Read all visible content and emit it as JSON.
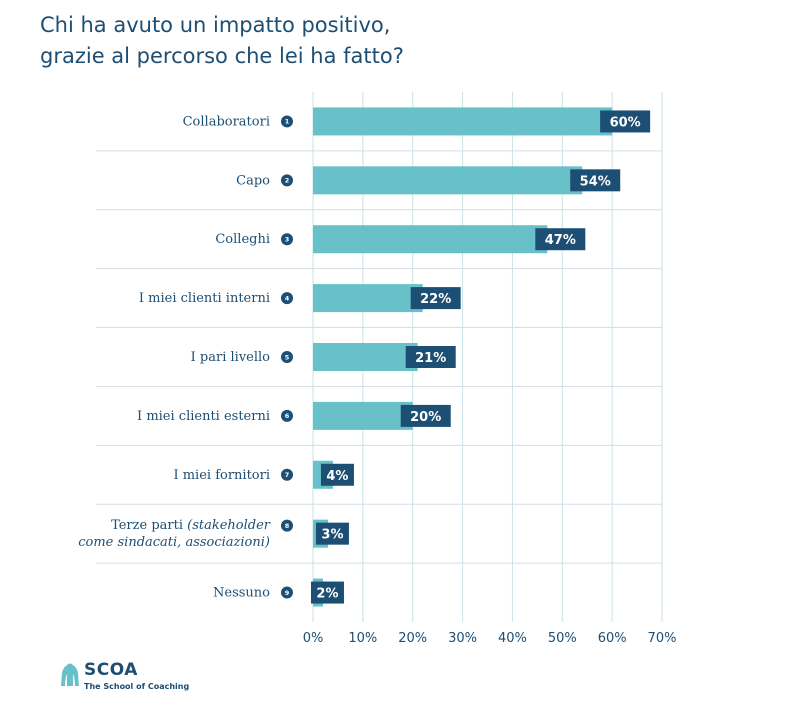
{
  "title_lines": [
    "Chi ha avuto un impatto positivo,",
    "grazie al percorso che lei ha fatto?"
  ],
  "colors": {
    "bar": "#68c1c8",
    "tag": "#1d4e73",
    "text": "#1d4e73",
    "grid": "#c7e3e6"
  },
  "chart_data": {
    "type": "bar",
    "orientation": "horizontal",
    "categories": [
      {
        "num": "1",
        "lines": [
          "Collaboratori"
        ]
      },
      {
        "num": "2",
        "lines": [
          "Capo"
        ]
      },
      {
        "num": "3",
        "lines": [
          "Colleghi"
        ]
      },
      {
        "num": "4",
        "lines": [
          "I miei clienti interni"
        ]
      },
      {
        "num": "5",
        "lines": [
          "I pari livello"
        ]
      },
      {
        "num": "6",
        "lines": [
          "I miei clienti esterni"
        ]
      },
      {
        "num": "7",
        "lines": [
          "I miei fornitori"
        ]
      },
      {
        "num": "8",
        "lines": [
          "Terze parti (stakeholder",
          "come sindacati, associazioni)"
        ],
        "italic_part": "(stakeholder come sindacati, associazioni)"
      },
      {
        "num": "9",
        "lines": [
          "Nessuno"
        ]
      }
    ],
    "values": [
      60,
      54,
      47,
      22,
      21,
      20,
      4,
      3,
      2
    ],
    "value_labels": [
      "60%",
      "54%",
      "47%",
      "22%",
      "21%",
      "20%",
      "4%",
      "3%",
      "2%"
    ],
    "xlim": [
      0,
      70
    ],
    "xticks": [
      "0%",
      "10%",
      "20%",
      "30%",
      "40%",
      "50%",
      "60%",
      "70%"
    ],
    "grid": true
  },
  "brand": {
    "name": "SCOA",
    "tagline": "The School of Coaching",
    "logo_icon": "coach-logo-icon"
  }
}
